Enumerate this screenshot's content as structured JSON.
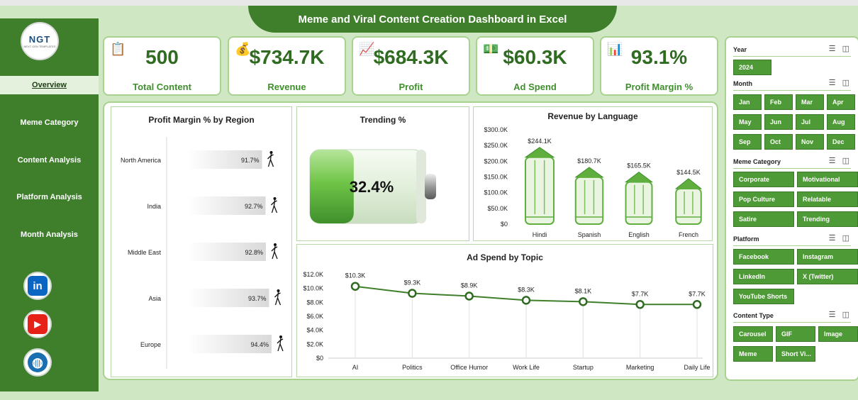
{
  "title": "Meme and Viral Content Creation Dashboard in Excel",
  "logo": {
    "text": "NGT",
    "subtext": "NEXT GEN TEMPLATES"
  },
  "nav": [
    {
      "label": "Overview",
      "active": true
    },
    {
      "label": "Meme Category"
    },
    {
      "label": "Content Analysis"
    },
    {
      "label": "Platform Analysis"
    },
    {
      "label": "Month Analysis"
    }
  ],
  "social": [
    {
      "name": "linkedin-icon",
      "glyph": "in",
      "color": "#0a66c2"
    },
    {
      "name": "youtube-icon",
      "glyph": "▶",
      "color": "#e62117"
    },
    {
      "name": "globe-icon",
      "glyph": "◍",
      "color": "#1a6fb0"
    }
  ],
  "kpis": [
    {
      "value": "500",
      "label": "Total Content",
      "icon": "clipboard-icon"
    },
    {
      "value": "$734.7K",
      "label": "Revenue",
      "icon": "money-icon"
    },
    {
      "value": "$684.3K",
      "label": "Profit",
      "icon": "chart-icon"
    },
    {
      "value": "$60.3K",
      "label": "Ad Spend",
      "icon": "hand-money-icon"
    },
    {
      "value": "93.1%",
      "label": "Profit Margin %",
      "icon": "bar-chart-icon"
    }
  ],
  "charts": {
    "profit_margin": {
      "title": "Profit Margin % by Region",
      "chart_data": {
        "type": "bar",
        "orientation": "horizontal",
        "categories": [
          "North America",
          "India",
          "Middle East",
          "Asia",
          "Europe"
        ],
        "values": [
          91.7,
          92.7,
          92.8,
          93.7,
          94.4
        ],
        "labels": [
          "91.7%",
          "92.7%",
          "92.8%",
          "93.7%",
          "94.4%"
        ]
      }
    },
    "trending": {
      "title": "Trending %",
      "value": 32.4,
      "label": "32.4%"
    },
    "revenue_language": {
      "title": "Revenue by Language",
      "chart_data": {
        "type": "bar",
        "categories": [
          "Hindi",
          "Spanish",
          "English",
          "French"
        ],
        "values": [
          244.1,
          180.7,
          165.5,
          144.5
        ],
        "labels": [
          "$244.1K",
          "$180.7K",
          "$165.5K",
          "$144.5K"
        ],
        "yticks": [
          "$0",
          "$50.0K",
          "$100.0K",
          "$150.0K",
          "$200.0K",
          "$250.0K",
          "$300.0K"
        ],
        "ylim": [
          0,
          300
        ]
      }
    },
    "ad_spend": {
      "title": "Ad Spend by Topic",
      "chart_data": {
        "type": "line",
        "categories": [
          "AI",
          "Politics",
          "Office Humor",
          "Work Life",
          "Startup",
          "Marketing",
          "Daily Life"
        ],
        "values": [
          10.3,
          9.3,
          8.9,
          8.3,
          8.1,
          7.7,
          7.7
        ],
        "labels": [
          "$10.3K",
          "$9.3K",
          "$8.9K",
          "$8.3K",
          "$8.1K",
          "$7.7K",
          "$7.7K"
        ],
        "yticks": [
          "$0",
          "$2.0K",
          "$4.0K",
          "$6.0K",
          "$8.0K",
          "$10.0K",
          "$12.0K"
        ],
        "ylim": [
          0,
          12
        ]
      }
    }
  },
  "slicers": {
    "year": {
      "title": "Year",
      "items": [
        "2024"
      ]
    },
    "month": {
      "title": "Month",
      "items": [
        "Jan",
        "Feb",
        "Mar",
        "Apr",
        "May",
        "Jun",
        "Jul",
        "Aug",
        "Sep",
        "Oct",
        "Nov",
        "Dec"
      ]
    },
    "category": {
      "title": "Meme Category",
      "items": [
        "Corporate",
        "Motivational",
        "Pop Culture",
        "Relatable",
        "Satire",
        "Trending"
      ]
    },
    "platform": {
      "title": "Platform",
      "items": [
        "Facebook",
        "Instagram",
        "LinkedIn",
        "X (Twitter)",
        "YouTube Shorts"
      ]
    },
    "content": {
      "title": "Content Type",
      "items": [
        "Carousel",
        "GIF",
        "Image",
        "Meme",
        "Short Vi..."
      ]
    }
  }
}
